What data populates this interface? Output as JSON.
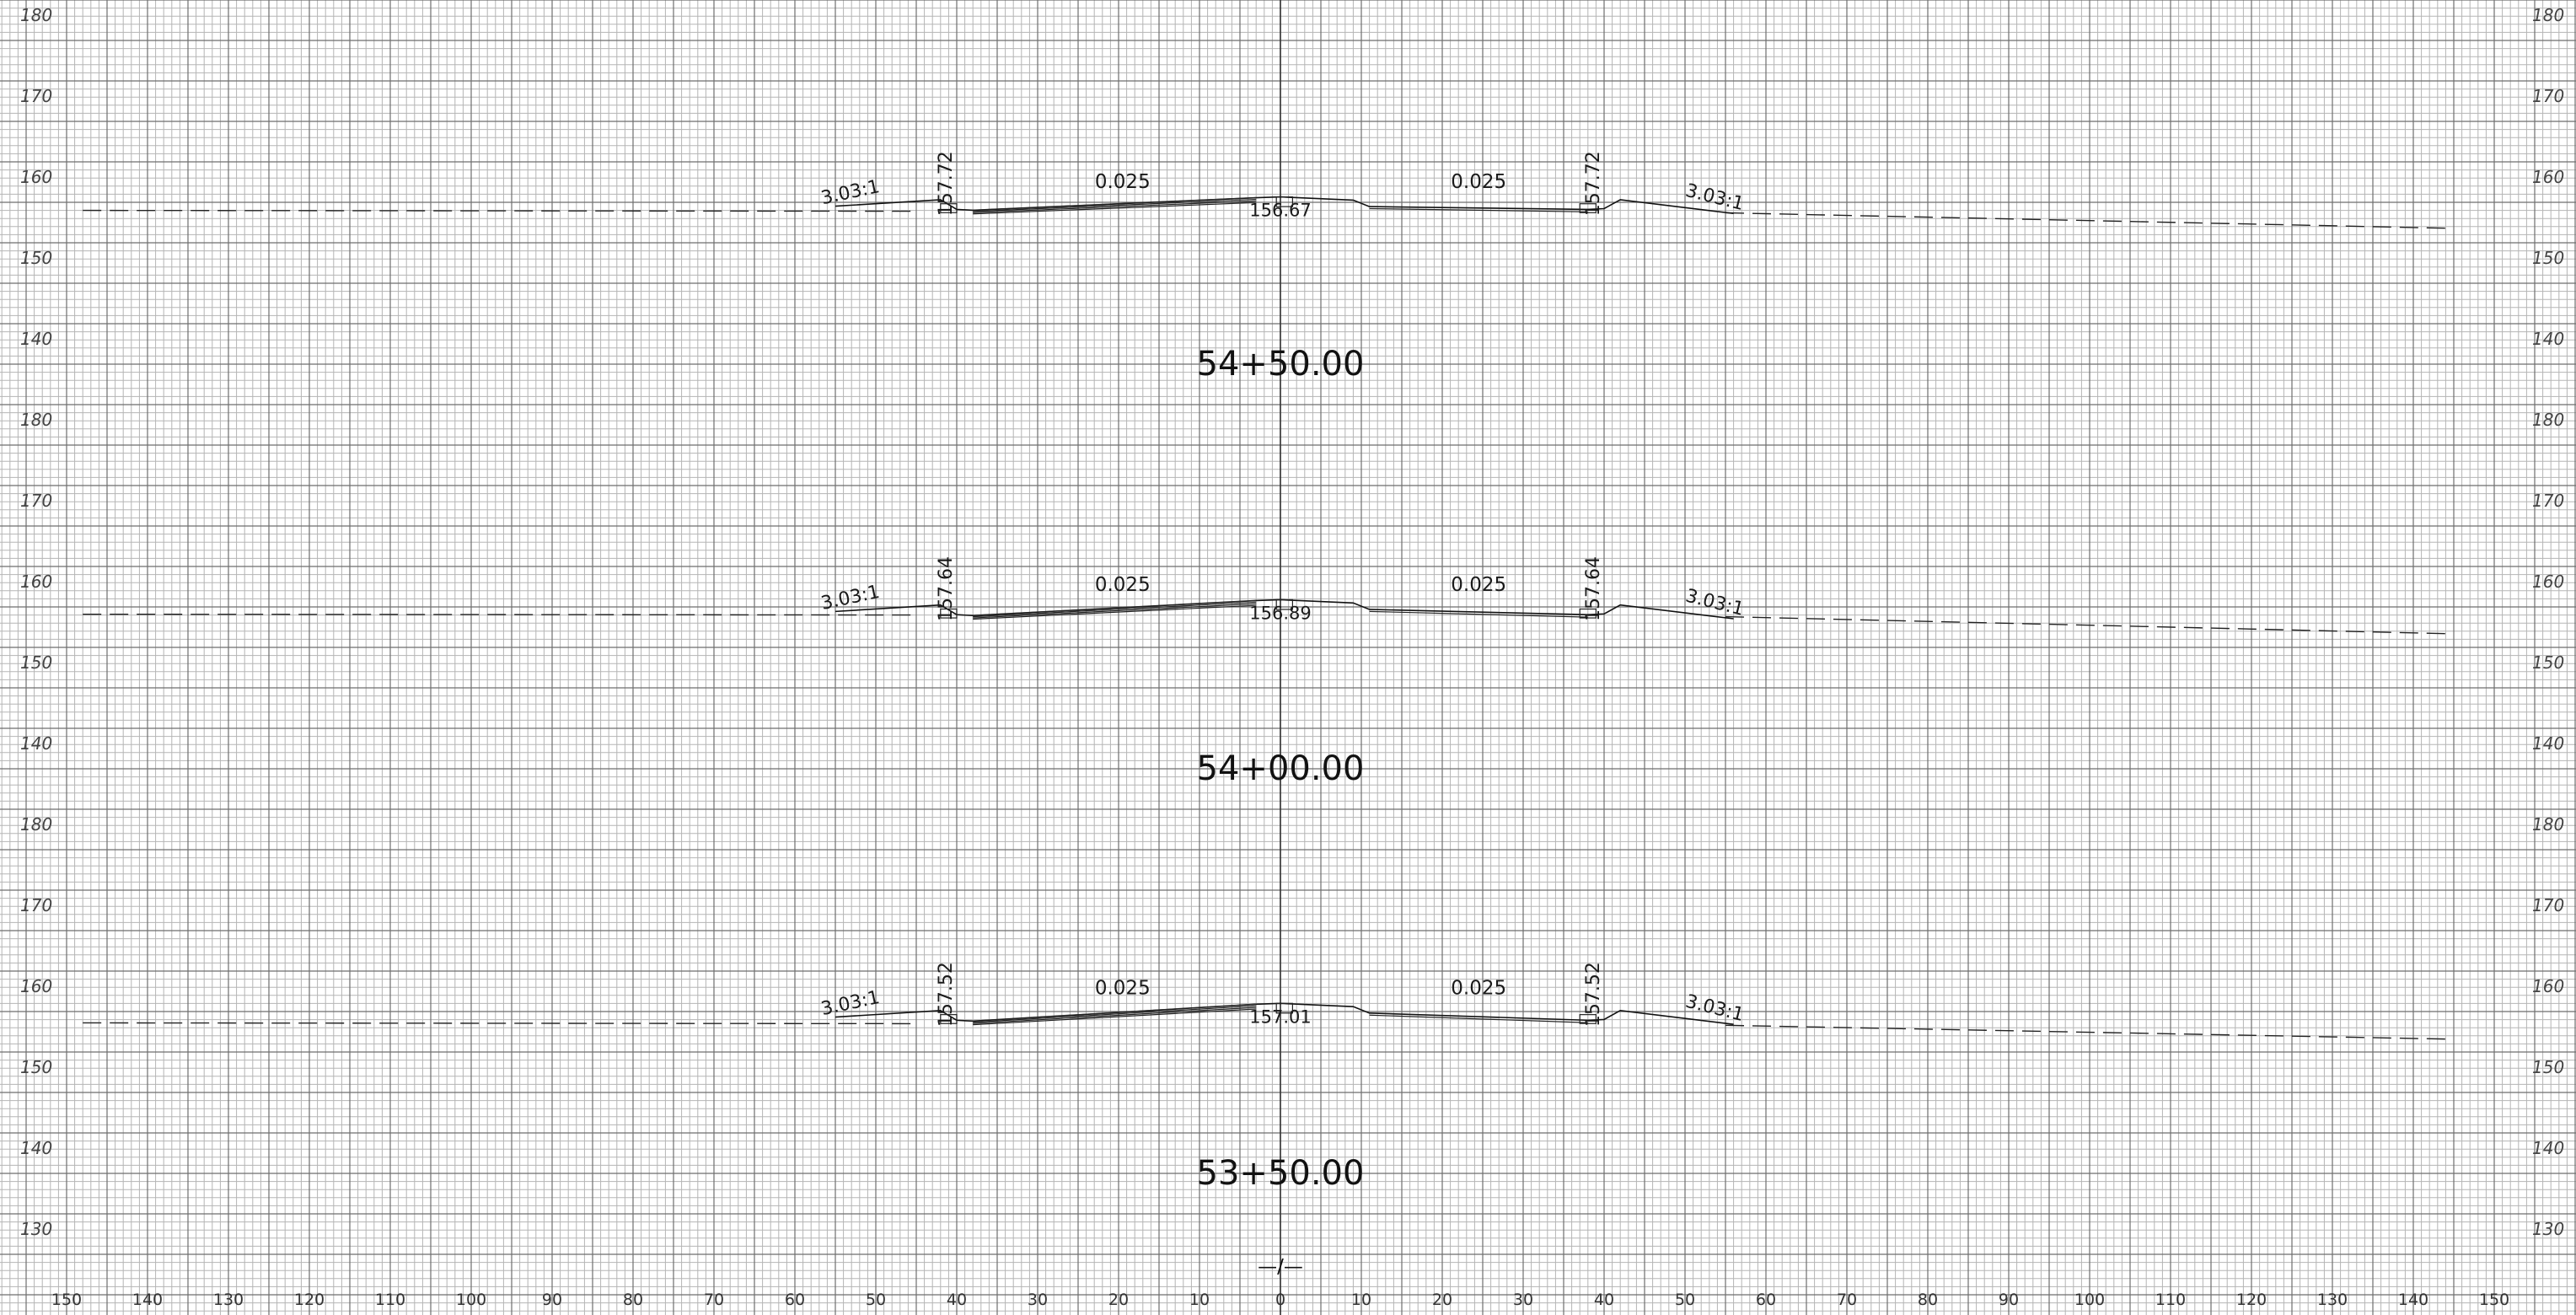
{
  "sheet": {
    "elevation_labels": [
      "180",
      "170",
      "160",
      "150",
      "140",
      "130"
    ],
    "offset_labels": [
      "150",
      "140",
      "130",
      "120",
      "110",
      "100",
      "90",
      "80",
      "70",
      "60",
      "50",
      "40",
      "30",
      "20",
      "10",
      "0",
      "10",
      "20",
      "30",
      "40",
      "50",
      "60",
      "70",
      "80",
      "90",
      "100",
      "110",
      "120",
      "130",
      "140",
      "150"
    ],
    "offset_values": [
      -150,
      -140,
      -130,
      -120,
      -110,
      -100,
      -90,
      -80,
      -70,
      -60,
      -50,
      -40,
      -30,
      -20,
      -10,
      0,
      10,
      20,
      30,
      40,
      50,
      60,
      70,
      80,
      90,
      100,
      110,
      120,
      130,
      140,
      150
    ],
    "match_symbol": "—/—"
  },
  "sections": [
    {
      "station": "54+50.00",
      "elevations": [
        180,
        170,
        160,
        150,
        140
      ],
      "left_edge_elev": "157.72",
      "right_edge_elev": "157.72",
      "centerline_elev": "156.67",
      "left_cross_slope": "0.025",
      "right_cross_slope": "0.025",
      "left_side_slope": "3.03:1",
      "right_side_slope": "3.03:1",
      "ground_left": 156.0,
      "ground_right": 153.8
    },
    {
      "station": "54+00.00",
      "elevations": [
        180,
        170,
        160,
        150,
        140
      ],
      "left_edge_elev": "157.64",
      "right_edge_elev": "157.64",
      "centerline_elev": "156.89",
      "left_cross_slope": "0.025",
      "right_cross_slope": "0.025",
      "left_side_slope": "3.03:1",
      "right_side_slope": "3.03:1",
      "ground_left": 156.1,
      "ground_right": 153.7
    },
    {
      "station": "53+50.00",
      "elevations": [
        180,
        170,
        160,
        150,
        140,
        130
      ],
      "left_edge_elev": "157.52",
      "right_edge_elev": "157.52",
      "centerline_elev": "157.01",
      "left_cross_slope": "0.025",
      "right_cross_slope": "0.025",
      "left_side_slope": "3.03:1",
      "right_side_slope": "3.03:1",
      "ground_left": 155.6,
      "ground_right": 153.6
    }
  ],
  "colors": {
    "grid_minor": "#b5b5b5",
    "grid_major": "#6e6e6e",
    "ink": "#111111"
  }
}
